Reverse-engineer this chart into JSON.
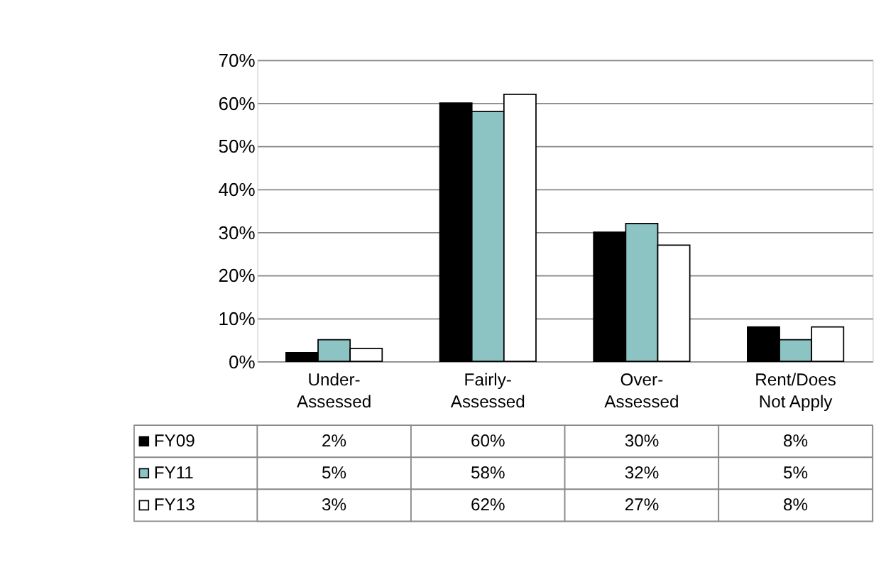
{
  "chart_data": {
    "type": "bar",
    "categories": [
      "Under-Assessed",
      "Fairly-Assessed",
      "Over-Assessed",
      "Rent/Does Not Apply"
    ],
    "series": [
      {
        "name": "FY09",
        "color": "#000000",
        "values": [
          2,
          60,
          30,
          8
        ],
        "value_labels": [
          "2%",
          "60%",
          "30%",
          "8%"
        ]
      },
      {
        "name": "FY11",
        "color": "#8cc3c3",
        "values": [
          5,
          58,
          32,
          5
        ],
        "value_labels": [
          "5%",
          "58%",
          "32%",
          "5%"
        ]
      },
      {
        "name": "FY13",
        "color": "#ffffff",
        "values": [
          3,
          62,
          27,
          8
        ],
        "value_labels": [
          "3%",
          "62%",
          "27%",
          "8%"
        ]
      }
    ],
    "ylim": [
      0,
      70
    ],
    "yticks": [
      {
        "value": 0,
        "label": "0%"
      },
      {
        "value": 10,
        "label": "10%"
      },
      {
        "value": 20,
        "label": "20%"
      },
      {
        "value": 30,
        "label": "30%"
      },
      {
        "value": 40,
        "label": "40%"
      },
      {
        "value": 50,
        "label": "50%"
      },
      {
        "value": 60,
        "label": "60%"
      },
      {
        "value": 70,
        "label": "70%"
      }
    ],
    "grid": "y",
    "legend": "bottom"
  }
}
